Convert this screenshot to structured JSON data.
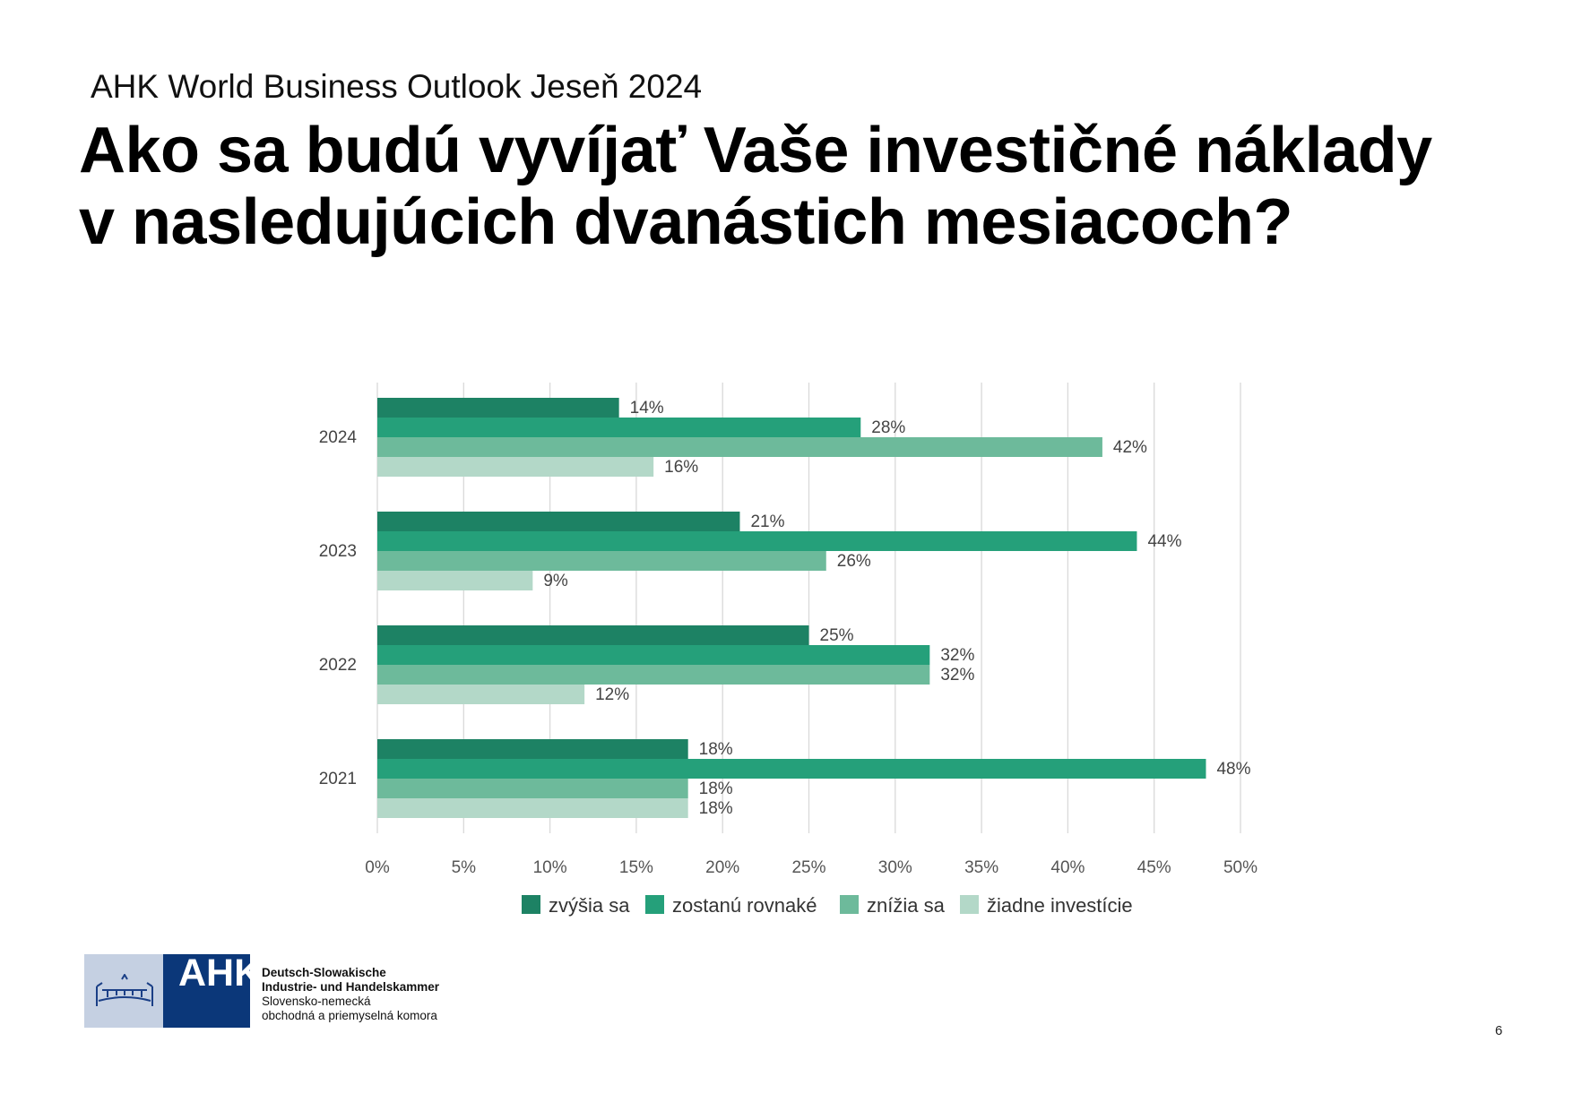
{
  "header": {
    "subtitle": "AHK World Business Outlook Jeseň 2024",
    "title_line1": "Ako sa budú vyvíjať Vaše investičné náklady",
    "title_line2": "v nasledujúcich dvanástich mesiacoch?"
  },
  "chart_data": {
    "type": "bar",
    "orientation": "horizontal",
    "categories": [
      "2024",
      "2023",
      "2022",
      "2021"
    ],
    "series": [
      {
        "name": "zvýšia sa",
        "color": "#1d8264",
        "values": [
          14,
          21,
          25,
          18
        ],
        "labels": [
          "14%",
          "21%",
          "25%",
          "18%"
        ]
      },
      {
        "name": "zostanú rovnaké",
        "color": "#25a07a",
        "values": [
          28,
          44,
          32,
          48
        ],
        "labels": [
          "28%",
          "44%",
          "32%",
          "48%"
        ]
      },
      {
        "name": "znížia sa",
        "color": "#6dba9b",
        "values": [
          42,
          26,
          32,
          18
        ],
        "labels": [
          "42%",
          "26%",
          "32%",
          "18%"
        ]
      },
      {
        "name": "žiadne investície",
        "color": "#b3d8c8",
        "values": [
          16,
          9,
          12,
          18
        ],
        "labels": [
          "16%",
          "9%",
          "12%",
          "18%"
        ]
      }
    ],
    "x_ticks": [
      "0%",
      "5%",
      "10%",
      "15%",
      "20%",
      "25%",
      "30%",
      "35%",
      "40%",
      "45%",
      "50%"
    ],
    "xlim": [
      0,
      50
    ],
    "grid": true,
    "legend_position": "bottom"
  },
  "footer": {
    "logo_text": "AHK",
    "org_line1": "Deutsch-Slowakische",
    "org_line2": "Industrie- und Handelskammer",
    "org_line3": "Slovensko-nemecká",
    "org_line4": "obchodná a priemyselná komora",
    "page_number": "6"
  }
}
